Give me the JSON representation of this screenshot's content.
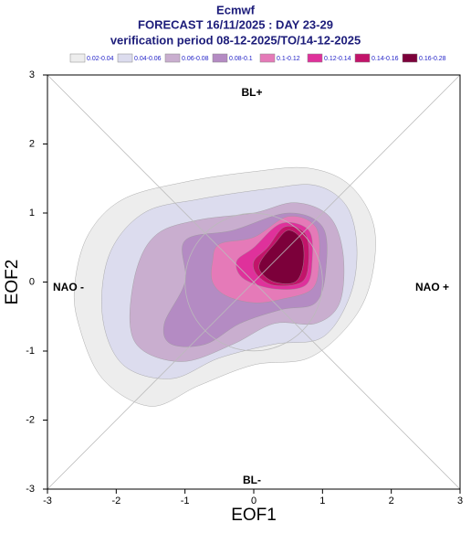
{
  "chart_data": {
    "type": "contour",
    "title_lines": [
      "Ecmwf",
      "FORECAST 16/11/2025 : DAY 23-29",
      "verification period 08-12-2025/TO/14-12-2025"
    ],
    "levels": [
      0.02,
      0.04,
      0.06,
      0.08,
      0.1,
      0.12,
      0.14,
      0.16,
      0.28
    ],
    "level_labels": [
      "0.02-0.04",
      "0.04-0.06",
      "0.06-0.08",
      "0.08-0.1",
      "0.1-0.12",
      "0.12-0.14",
      "0.14-0.16",
      "0.16-0.28"
    ],
    "colors": [
      "#ededed",
      "#dcdcee",
      "#c9aecf",
      "#b48bc3",
      "#e57ab8",
      "#df319b",
      "#c2146a",
      "#7c003a"
    ],
    "xlim": [
      -3,
      3
    ],
    "ylim": [
      -3,
      3
    ],
    "xticks": [
      -3,
      -2,
      -1,
      0,
      1,
      2,
      3
    ],
    "yticks": [
      -3,
      -2,
      -1,
      0,
      1,
      2,
      3
    ],
    "xlabel": "EOF1",
    "ylabel": "EOF2",
    "annotations": [
      "BL+",
      "BL-",
      "NAO -",
      "NAO +"
    ]
  }
}
